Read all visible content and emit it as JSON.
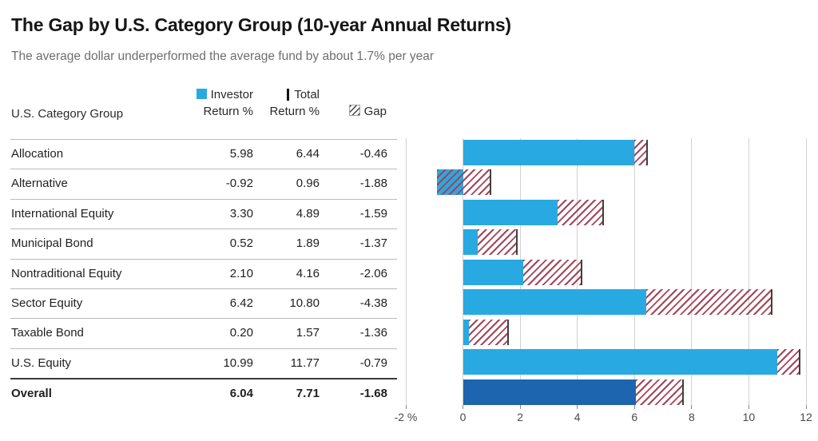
{
  "header": {
    "title": "The Gap by U.S. Category Group (10-year Annual Returns)",
    "subtitle": "The average dollar underperformed the average fund by about 1.7% per year"
  },
  "legend": {
    "investor_line1": "Investor",
    "investor_line2": "Return %",
    "total_line1": "Total",
    "total_line2": "Return %",
    "gap_label": "Gap"
  },
  "table": {
    "group_header": "U.S. Category Group",
    "rows": [
      {
        "name": "Allocation",
        "investor": "5.98",
        "total": "6.44",
        "gap": "-0.46",
        "emphasis": false
      },
      {
        "name": "Alternative",
        "investor": "-0.92",
        "total": "0.96",
        "gap": "-1.88",
        "emphasis": false
      },
      {
        "name": "International Equity",
        "investor": "3.30",
        "total": "4.89",
        "gap": "-1.59",
        "emphasis": false
      },
      {
        "name": "Municipal Bond",
        "investor": "0.52",
        "total": "1.89",
        "gap": "-1.37",
        "emphasis": false
      },
      {
        "name": "Nontraditional Equity",
        "investor": "2.10",
        "total": "4.16",
        "gap": "-2.06",
        "emphasis": false
      },
      {
        "name": "Sector Equity",
        "investor": "6.42",
        "total": "10.80",
        "gap": "-4.38",
        "emphasis": false
      },
      {
        "name": "Taxable Bond",
        "investor": "0.20",
        "total": "1.57",
        "gap": "-1.36",
        "emphasis": false
      },
      {
        "name": "U.S. Equity",
        "investor": "10.99",
        "total": "11.77",
        "gap": "-0.79",
        "emphasis": false
      },
      {
        "name": "Overall",
        "investor": "6.04",
        "total": "7.71",
        "gap": "-1.68",
        "emphasis": true
      }
    ]
  },
  "chart_data": {
    "type": "bar",
    "orientation": "horizontal",
    "title": "The Gap by U.S. Category Group (10-year Annual Returns)",
    "categories": [
      "Allocation",
      "Alternative",
      "International Equity",
      "Municipal Bond",
      "Nontraditional Equity",
      "Sector Equity",
      "Taxable Bond",
      "U.S. Equity",
      "Overall"
    ],
    "series": [
      {
        "name": "Investor Return %",
        "values": [
          5.98,
          -0.92,
          3.3,
          0.52,
          2.1,
          6.42,
          0.2,
          10.99,
          6.04
        ]
      },
      {
        "name": "Total Return %",
        "values": [
          6.44,
          0.96,
          4.89,
          1.89,
          4.16,
          10.8,
          1.57,
          11.77,
          7.71
        ]
      },
      {
        "name": "Gap",
        "values": [
          -0.46,
          -1.88,
          -1.59,
          -1.37,
          -2.06,
          -4.38,
          -1.36,
          -0.79,
          -1.68
        ]
      }
    ],
    "xlim": [
      -2,
      12
    ],
    "xticks": [
      -2,
      0,
      2,
      4,
      6,
      8,
      10,
      12
    ],
    "xtick_labels": [
      "-2 %",
      "0",
      "2",
      "4",
      "6",
      "8",
      "10",
      "12"
    ],
    "grid": true,
    "legend_position": "top",
    "colors": {
      "investor_bar": "#29A9E1",
      "overall_bar": "#1D65AF",
      "gap_hatch": "#A34458",
      "total_marker": "#3F3F3F",
      "gridline": "#D2D2D2"
    }
  }
}
